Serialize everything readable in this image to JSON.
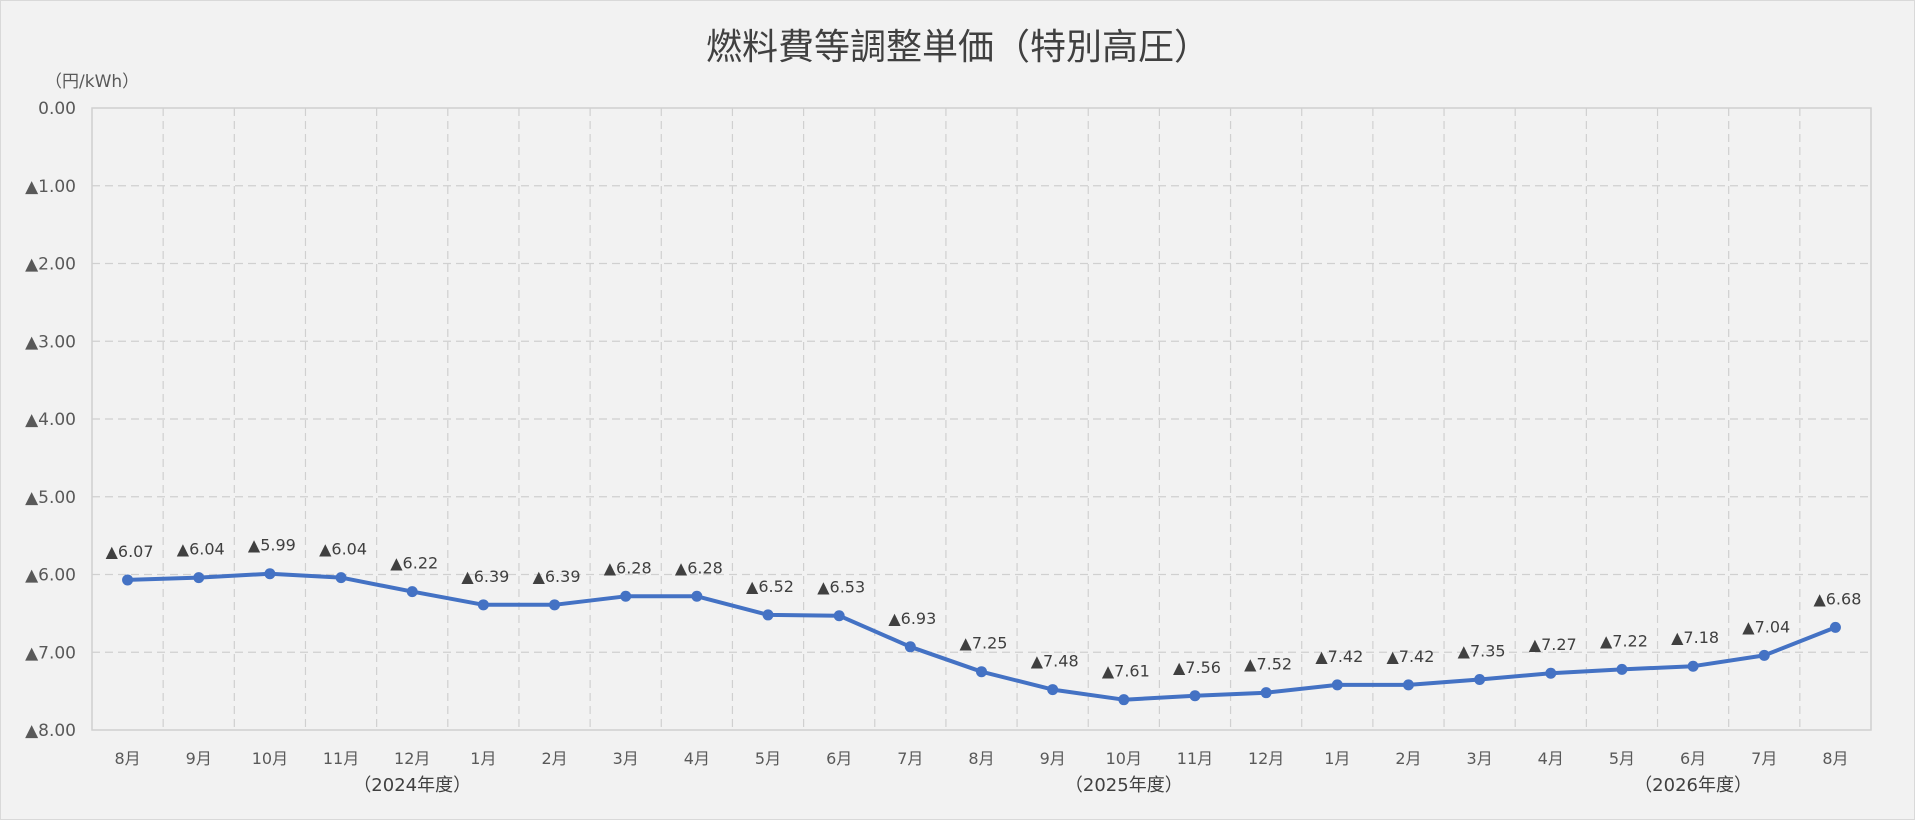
{
  "chart_data": {
    "type": "line",
    "title": "燃料費等調整単価（特別高圧）",
    "ylabel": "（円/kWh）",
    "xlabel": "",
    "ylim": [
      -8,
      0
    ],
    "y_ticks": [
      {
        "value": 0,
        "label": "0.00"
      },
      {
        "value": -1,
        "label": "▲1.00"
      },
      {
        "value": -2,
        "label": "▲2.00"
      },
      {
        "value": -3,
        "label": "▲3.00"
      },
      {
        "value": -4,
        "label": "▲4.00"
      },
      {
        "value": -5,
        "label": "▲5.00"
      },
      {
        "value": -6,
        "label": "▲6.00"
      },
      {
        "value": -7,
        "label": "▲7.00"
      },
      {
        "value": -8,
        "label": "▲8.00"
      }
    ],
    "grid": true,
    "categories": [
      "8月",
      "9月",
      "10月",
      "11月",
      "12月",
      "1月",
      "2月",
      "3月",
      "4月",
      "5月",
      "6月",
      "7月",
      "8月",
      "9月",
      "10月",
      "11月",
      "12月",
      "1月",
      "2月",
      "3月",
      "4月",
      "5月",
      "6月",
      "7月",
      "8月"
    ],
    "year_groups": [
      {
        "label": "（2024年度）",
        "category_index": 4
      },
      {
        "label": "（2025年度）",
        "category_index": 14
      },
      {
        "label": "（2026年度）",
        "category_index": 22
      }
    ],
    "series": [
      {
        "color": "#4472c4",
        "values": [
          -6.07,
          -6.04,
          -5.99,
          -6.04,
          -6.22,
          -6.39,
          -6.39,
          -6.28,
          -6.28,
          -6.52,
          -6.53,
          -6.93,
          -7.25,
          -7.48,
          -7.61,
          -7.56,
          -7.52,
          -7.42,
          -7.42,
          -7.35,
          -7.27,
          -7.22,
          -7.18,
          -7.04,
          -6.68
        ],
        "data_labels": [
          "▲6.07",
          "▲6.04",
          "▲5.99",
          "▲6.04",
          "▲6.22",
          "▲6.39",
          "▲6.39",
          "▲6.28",
          "▲6.28",
          "▲6.52",
          "▲6.53",
          "▲6.93",
          "▲7.25",
          "▲7.48",
          "▲7.61",
          "▲7.56",
          "▲7.52",
          "▲7.42",
          "▲7.42",
          "▲7.35",
          "▲7.27",
          "▲7.22",
          "▲7.18",
          "▲7.04",
          "▲6.68"
        ]
      }
    ]
  }
}
